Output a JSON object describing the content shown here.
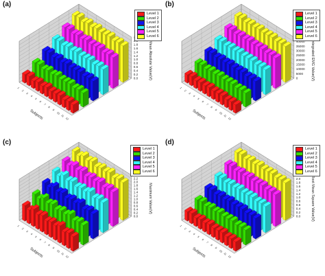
{
  "colors": {
    "levels": [
      "#ff1a1a",
      "#33dd00",
      "#1010ee",
      "#33ffff",
      "#ff22ff",
      "#ffff22"
    ],
    "wall": "#d4d4d4",
    "grid": "#9a9a9a"
  },
  "legend_labels": [
    "Level 1",
    "Level 2",
    "Level 3",
    "Level 4",
    "Level 5",
    "Level 6"
  ],
  "chart_data": [
    {
      "type": "bar",
      "panel": "(a)",
      "zlabel": "Mean Absolute Value(V)",
      "xlabel": "Subjects",
      "z_ticks": [
        "0.0",
        "0.2",
        "0.4",
        "0.6",
        "0.8",
        "1.0",
        "1.2",
        "1.4",
        "1.6",
        "1.8",
        "2.0",
        "2.2"
      ],
      "zlim": [
        0,
        2.2
      ],
      "series": [
        {
          "name": "Level 1",
          "values": [
            0.45,
            0.5,
            0.4,
            0.48,
            0.42,
            0.5,
            0.44,
            0.46,
            0.5,
            0.42,
            0.48,
            0.45
          ]
        },
        {
          "name": "Level 2",
          "values": [
            0.75,
            0.8,
            0.7,
            0.78,
            0.72,
            0.8,
            0.74,
            0.76,
            0.8,
            0.72,
            0.78,
            0.75
          ]
        },
        {
          "name": "Level 3",
          "values": [
            1.05,
            1.1,
            1.0,
            1.08,
            1.02,
            1.1,
            1.04,
            1.06,
            1.1,
            1.02,
            1.08,
            1.05
          ]
        },
        {
          "name": "Level 4",
          "values": [
            1.35,
            1.4,
            1.3,
            1.38,
            1.32,
            1.4,
            1.34,
            1.36,
            1.4,
            1.32,
            1.38,
            1.35
          ]
        },
        {
          "name": "Level 5",
          "values": [
            1.65,
            1.7,
            1.6,
            1.68,
            1.62,
            1.7,
            1.64,
            1.66,
            1.7,
            1.62,
            1.68,
            1.65
          ]
        },
        {
          "name": "Level 6",
          "values": [
            1.95,
            2.0,
            1.9,
            1.98,
            1.92,
            2.0,
            1.94,
            1.96,
            2.0,
            1.92,
            1.98,
            1.95
          ]
        }
      ]
    },
    {
      "type": "bar",
      "panel": "(b)",
      "zlabel": "Integrated EMG Value(V)",
      "xlabel": "Subjects",
      "z_ticks": [
        "0",
        "5000",
        "10000",
        "15000",
        "20000",
        "25000",
        "30000",
        "35000",
        "40000",
        "45000"
      ],
      "zlim": [
        0,
        45000
      ],
      "series": [
        {
          "name": "Level 1",
          "values": [
            9000,
            10000,
            8500,
            9500,
            9000,
            10000,
            9200,
            9600,
            10000,
            8800,
            9500,
            9200
          ]
        },
        {
          "name": "Level 2",
          "values": [
            15000,
            16000,
            14500,
            15500,
            15000,
            16000,
            15200,
            15600,
            16000,
            14800,
            15500,
            15200
          ]
        },
        {
          "name": "Level 3",
          "values": [
            21000,
            22000,
            20500,
            21500,
            21000,
            22000,
            21200,
            21600,
            22000,
            20800,
            21500,
            21200
          ]
        },
        {
          "name": "Level 4",
          "values": [
            27000,
            28000,
            26500,
            27500,
            27000,
            28000,
            27200,
            27600,
            28000,
            26800,
            27500,
            27200
          ]
        },
        {
          "name": "Level 5",
          "values": [
            33000,
            34000,
            32500,
            33500,
            33000,
            34000,
            33200,
            33600,
            34000,
            32800,
            33500,
            33200
          ]
        },
        {
          "name": "Level 6",
          "values": [
            39000,
            40000,
            38500,
            39500,
            39000,
            40000,
            39200,
            39600,
            40000,
            38800,
            39500,
            39200
          ]
        }
      ]
    },
    {
      "type": "bar",
      "panel": "(c)",
      "zlabel": "Maximum Value(V)",
      "xlabel": "Subjects",
      "z_ticks": [
        "0.0",
        "0.2",
        "0.4",
        "0.6",
        "0.8",
        "1.0",
        "1.2",
        "1.4",
        "1.6",
        "1.8",
        "2.0",
        "2.2",
        "2.4"
      ],
      "zlim": [
        0,
        2.4
      ],
      "series": [
        {
          "name": "Level 1",
          "values": [
            0.9,
            0.8,
            1.0,
            0.85,
            0.95,
            0.8,
            0.9,
            0.85,
            1.0,
            0.8,
            0.9,
            0.85
          ]
        },
        {
          "name": "Level 2",
          "values": [
            1.2,
            1.1,
            1.3,
            1.15,
            1.25,
            1.1,
            1.2,
            1.15,
            1.3,
            1.1,
            1.2,
            1.15
          ]
        },
        {
          "name": "Level 3",
          "values": [
            1.5,
            1.4,
            1.6,
            1.45,
            1.55,
            1.4,
            1.5,
            1.45,
            1.6,
            1.4,
            1.5,
            1.45
          ]
        },
        {
          "name": "Level 4",
          "values": [
            1.8,
            1.7,
            1.9,
            1.75,
            1.85,
            1.7,
            1.8,
            1.75,
            1.9,
            1.7,
            1.8,
            1.75
          ]
        },
        {
          "name": "Level 5",
          "values": [
            2.05,
            1.95,
            2.1,
            2.0,
            2.1,
            1.95,
            2.05,
            2.0,
            2.1,
            1.95,
            2.05,
            2.0
          ]
        },
        {
          "name": "Level 6",
          "values": [
            2.25,
            2.15,
            2.3,
            2.2,
            2.3,
            2.15,
            2.25,
            2.2,
            2.3,
            2.15,
            2.25,
            2.2
          ]
        }
      ]
    },
    {
      "type": "bar",
      "panel": "(d)",
      "zlabel": "Root Mean Square Value(V)",
      "xlabel": "Subjects",
      "z_ticks": [
        "0.0",
        "0.2",
        "0.4",
        "0.6",
        "0.8",
        "1.0",
        "1.2",
        "1.4",
        "1.6",
        "1.8",
        "2.0",
        "2.2"
      ],
      "zlim": [
        0,
        2.2
      ],
      "series": [
        {
          "name": "Level 1",
          "values": [
            0.5,
            0.55,
            0.45,
            0.52,
            0.48,
            0.55,
            0.5,
            0.52,
            0.55,
            0.48,
            0.52,
            0.5
          ]
        },
        {
          "name": "Level 2",
          "values": [
            0.8,
            0.85,
            0.75,
            0.82,
            0.78,
            0.85,
            0.8,
            0.82,
            0.85,
            0.78,
            0.82,
            0.8
          ]
        },
        {
          "name": "Level 3",
          "values": [
            1.1,
            1.15,
            1.05,
            1.12,
            1.08,
            1.15,
            1.1,
            1.12,
            1.15,
            1.08,
            1.12,
            1.1
          ]
        },
        {
          "name": "Level 4",
          "values": [
            1.4,
            1.45,
            1.35,
            1.42,
            1.38,
            1.45,
            1.4,
            1.42,
            1.45,
            1.38,
            1.42,
            1.4
          ]
        },
        {
          "name": "Level 5",
          "values": [
            1.7,
            1.75,
            1.65,
            1.72,
            1.68,
            1.75,
            1.7,
            1.72,
            1.75,
            1.68,
            1.72,
            1.7
          ]
        },
        {
          "name": "Level 6",
          "values": [
            2.0,
            2.05,
            1.95,
            2.02,
            1.98,
            2.05,
            2.0,
            2.02,
            2.05,
            1.98,
            2.02,
            2.0
          ]
        }
      ]
    }
  ]
}
